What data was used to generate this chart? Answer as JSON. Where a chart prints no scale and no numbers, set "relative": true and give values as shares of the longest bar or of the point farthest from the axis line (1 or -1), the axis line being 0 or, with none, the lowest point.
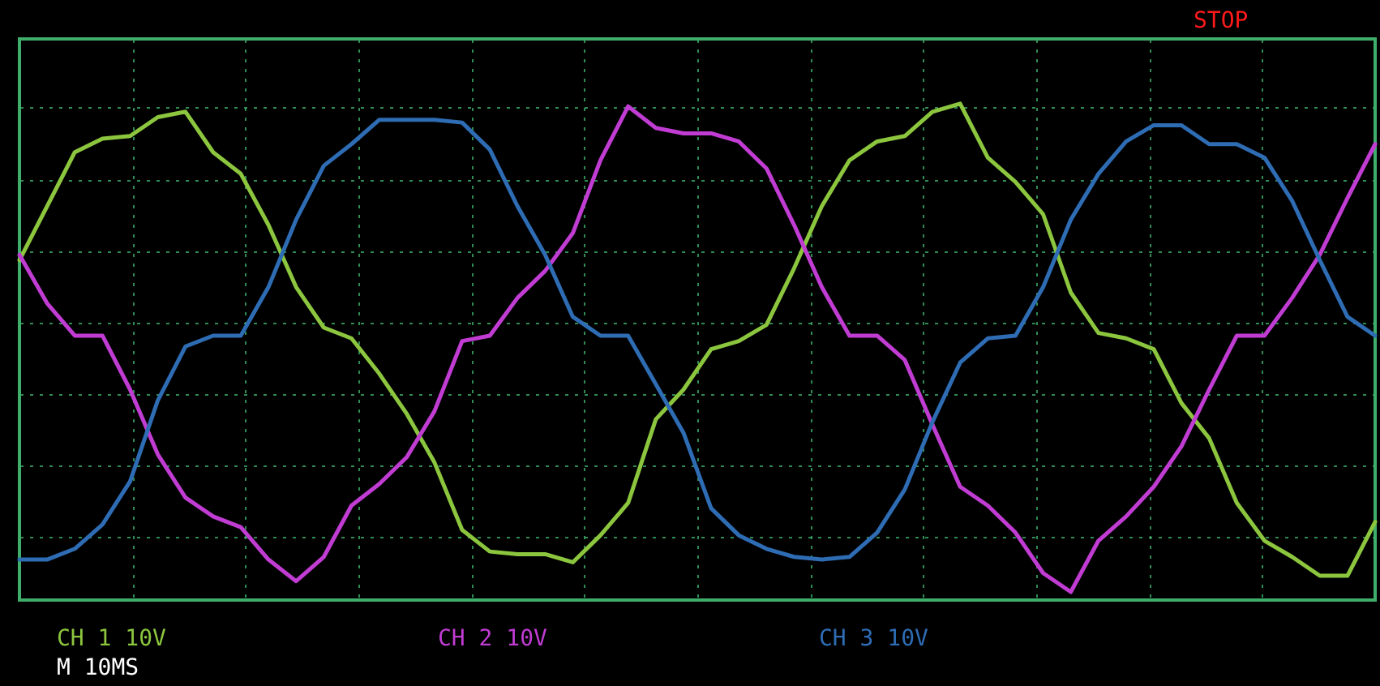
{
  "chart_data": {
    "type": "line",
    "relative": true,
    "grid": true,
    "legend": "bottom",
    "categories": [
      null,
      null,
      null,
      null,
      null,
      null,
      null,
      null,
      null,
      null,
      null,
      null,
      null,
      null,
      null,
      null,
      null,
      null,
      null,
      null,
      null,
      null,
      null,
      null,
      null,
      null,
      null,
      null,
      null,
      null,
      null,
      null,
      null,
      null,
      null,
      null,
      null,
      null,
      null,
      null,
      null,
      null,
      null,
      null,
      null,
      null,
      null,
      null,
      null,
      null
    ],
    "series": [
      {
        "name": "CH 1 10V",
        "color": "#8cc63e",
        "values": [
          0.23,
          0.43,
          0.63,
          0.68,
          0.69,
          0.76,
          0.78,
          0.63,
          0.55,
          0.36,
          0.13,
          -0.02,
          -0.06,
          -0.19,
          -0.34,
          -0.52,
          -0.77,
          -0.85,
          -0.86,
          -0.86,
          -0.89,
          -0.79,
          -0.67,
          -0.36,
          -0.25,
          -0.1,
          -0.07,
          -0.01,
          0.2,
          0.43,
          0.6,
          0.67,
          0.69,
          0.78,
          0.81,
          0.61,
          0.52,
          0.4,
          0.11,
          -0.04,
          -0.06,
          -0.1,
          -0.3,
          -0.43,
          -0.67,
          -0.81,
          -0.87,
          -0.94,
          -0.94,
          -0.74
        ]
      },
      {
        "name": "CH 2 10V",
        "color": "#c03cd2",
        "values": [
          0.25,
          0.07,
          -0.05,
          -0.05,
          -0.25,
          -0.49,
          -0.65,
          -0.72,
          -0.76,
          -0.88,
          -0.96,
          -0.87,
          -0.68,
          -0.6,
          -0.5,
          -0.33,
          -0.07,
          -0.05,
          0.09,
          0.19,
          0.33,
          0.6,
          0.8,
          0.72,
          0.7,
          0.7,
          0.67,
          0.57,
          0.36,
          0.13,
          -0.05,
          -0.05,
          -0.14,
          -0.38,
          -0.61,
          -0.68,
          -0.78,
          -0.93,
          -1.0,
          -0.81,
          -0.72,
          -0.61,
          -0.46,
          -0.25,
          -0.05,
          -0.05,
          0.09,
          0.25,
          0.46,
          0.66
        ]
      },
      {
        "name": "CH 3 10V",
        "color": "#2e6cb4",
        "values": [
          -0.88,
          -0.88,
          -0.84,
          -0.75,
          -0.59,
          -0.29,
          -0.09,
          -0.05,
          -0.05,
          0.13,
          0.38,
          0.58,
          0.66,
          0.75,
          0.75,
          0.75,
          0.74,
          0.64,
          0.43,
          0.25,
          0.02,
          -0.05,
          -0.05,
          -0.23,
          -0.41,
          -0.69,
          -0.79,
          -0.84,
          -0.87,
          -0.88,
          -0.87,
          -0.78,
          -0.62,
          -0.37,
          -0.15,
          -0.06,
          -0.05,
          0.13,
          0.38,
          0.55,
          0.67,
          0.73,
          0.73,
          0.66,
          0.66,
          0.61,
          0.45,
          0.23,
          0.02,
          -0.05
        ]
      }
    ],
    "annotations": [
      "STOP",
      "M 10MS"
    ]
  }
}
